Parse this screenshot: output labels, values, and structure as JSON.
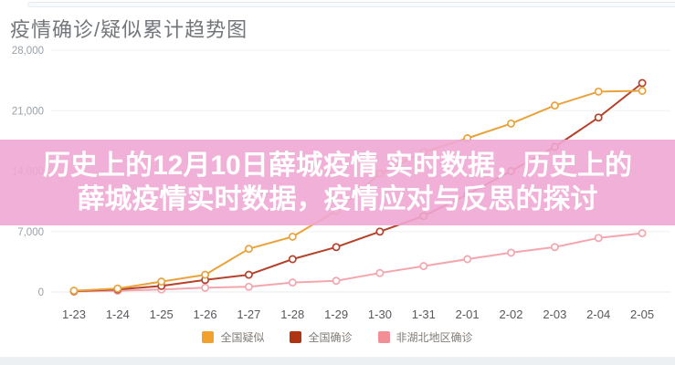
{
  "page": {
    "background": "#ffffff",
    "top_strip_color": "#f8fbfd",
    "bottom_strip_color": "#edf0f3"
  },
  "overlay": {
    "line1": "历史上的12月10日薛城疫情 实时数据，历史上的",
    "line2": "薛城疫情实时数据，疫情应对与反思的探讨",
    "background": "#F0A7D3",
    "text_color": "#FFFFFF"
  },
  "chart_data": {
    "type": "line",
    "title": "疫情确诊/疑似累计趋势图",
    "categories": [
      "1-23",
      "1-24",
      "1-25",
      "1-26",
      "1-27",
      "1-28",
      "1-29",
      "1-30",
      "1-31",
      "2-01",
      "2-02",
      "2-03",
      "2-04",
      "2-05"
    ],
    "series": [
      {
        "name": "全国疑似",
        "color": "#F0A12E",
        "line_color": "#E9A33C",
        "values": [
          150,
          400,
          1200,
          2000,
          5000,
          6400,
          9400,
          13700,
          16200,
          17800,
          19500,
          21600,
          23200,
          23300
        ]
      },
      {
        "name": "全国确诊",
        "color": "#B03312",
        "line_color": "#B5422A",
        "values": [
          100,
          300,
          700,
          1400,
          2000,
          3800,
          5200,
          7000,
          8800,
          11300,
          14000,
          16800,
          20200,
          24200
        ]
      },
      {
        "name": "非湖北地区确诊",
        "color": "#F28E96",
        "line_color": "#F4A6AE",
        "values": [
          50,
          150,
          300,
          500,
          600,
          1100,
          1300,
          2200,
          3000,
          3800,
          4550,
          5200,
          6250,
          6800
        ]
      }
    ],
    "yticks": [
      {
        "value": 0,
        "label": "0"
      },
      {
        "value": 7000,
        "label": "7,000"
      },
      {
        "value": 14000,
        "label": "14,000"
      },
      {
        "value": 21000,
        "label": "21,000"
      },
      {
        "value": 28000,
        "label": "28,000"
      }
    ],
    "ylim": [
      0,
      28000
    ],
    "grid": true,
    "legend_position": "bottom",
    "marker": "hollow-circle",
    "axis_label_color": "#9ba1a6",
    "x_label_color": "#55585c",
    "grid_color": "#f0f0f0"
  }
}
